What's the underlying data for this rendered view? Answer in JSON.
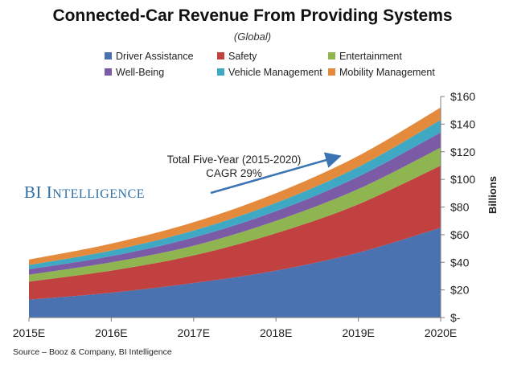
{
  "chart_data": {
    "type": "area",
    "stacked": true,
    "title": "Connected-Car Revenue From Providing Systems",
    "subtitle": "(Global)",
    "x": [
      "2015E",
      "2016E",
      "2017E",
      "2018E",
      "2019E",
      "2020E"
    ],
    "ylabel": "Billions",
    "ylim": [
      0,
      160
    ],
    "y_ticks": [
      "$-",
      "$20",
      "$40",
      "$60",
      "$80",
      "$100",
      "$120",
      "$140",
      "$160"
    ],
    "grid": false,
    "legend_position": "top",
    "series": [
      {
        "name": "Driver Assistance",
        "color": "#4a72b0",
        "values": [
          13,
          18,
          25,
          34,
          47,
          65
        ]
      },
      {
        "name": "Safety",
        "color": "#c0413f",
        "values": [
          13,
          16,
          20,
          27,
          35,
          45
        ]
      },
      {
        "name": "Entertainment",
        "color": "#8fb550",
        "values": [
          5,
          6,
          7,
          9,
          11,
          13
        ]
      },
      {
        "name": "Well-Being",
        "color": "#7b5ba6",
        "values": [
          4,
          4.5,
          6,
          7,
          9,
          11
        ]
      },
      {
        "name": "Vehicle Management",
        "color": "#3fa9c3",
        "values": [
          3,
          4,
          5,
          6,
          7,
          9
        ]
      },
      {
        "name": "Mobility Management",
        "color": "#e48a3c",
        "values": [
          4,
          5,
          6,
          7,
          8,
          9
        ]
      }
    ],
    "annotation": {
      "line1": "Total Five-Year (2015-2020)",
      "line2": "CAGR 29%"
    }
  },
  "watermark": {
    "big1": "BI",
    "big2": "I",
    "small": "NTELLIGENCE"
  },
  "source": "Source – Booz & Company, BI Intelligence"
}
